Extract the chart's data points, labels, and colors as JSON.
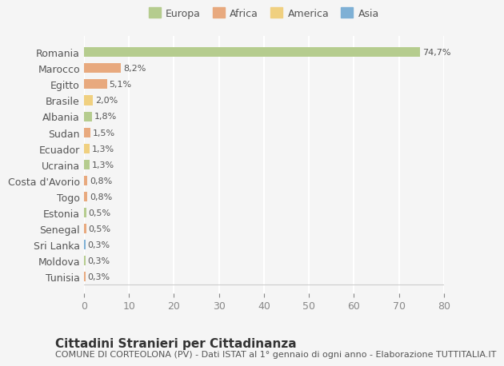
{
  "countries": [
    "Romania",
    "Marocco",
    "Egitto",
    "Brasile",
    "Albania",
    "Sudan",
    "Ecuador",
    "Ucraina",
    "Costa d'Avorio",
    "Togo",
    "Estonia",
    "Senegal",
    "Sri Lanka",
    "Moldova",
    "Tunisia"
  ],
  "values": [
    74.7,
    8.2,
    5.1,
    2.0,
    1.8,
    1.5,
    1.3,
    1.3,
    0.8,
    0.8,
    0.5,
    0.5,
    0.3,
    0.3,
    0.3
  ],
  "labels": [
    "74,7%",
    "8,2%",
    "5,1%",
    "2,0%",
    "1,8%",
    "1,5%",
    "1,3%",
    "1,3%",
    "0,8%",
    "0,8%",
    "0,5%",
    "0,5%",
    "0,3%",
    "0,3%",
    "0,3%"
  ],
  "continents": [
    "Europa",
    "Africa",
    "Africa",
    "America",
    "Europa",
    "Africa",
    "America",
    "Europa",
    "Africa",
    "Africa",
    "Europa",
    "Africa",
    "Asia",
    "Europa",
    "Africa"
  ],
  "continent_colors": {
    "Europa": "#b5cc8e",
    "Africa": "#e8a97e",
    "America": "#f0d080",
    "Asia": "#7eb0d5"
  },
  "legend_order": [
    "Europa",
    "Africa",
    "America",
    "Asia"
  ],
  "title": "Cittadini Stranieri per Cittadinanza",
  "subtitle": "COMUNE DI CORTEOLONA (PV) - Dati ISTAT al 1° gennaio di ogni anno - Elaborazione TUTTITALIA.IT",
  "xlim": [
    0,
    80
  ],
  "xticks": [
    0,
    10,
    20,
    30,
    40,
    50,
    60,
    70,
    80
  ],
  "background_color": "#f5f5f5",
  "grid_color": "#ffffff",
  "bar_height": 0.6,
  "title_fontsize": 11,
  "subtitle_fontsize": 8,
  "tick_fontsize": 9,
  "label_fontsize": 8,
  "legend_fontsize": 9
}
